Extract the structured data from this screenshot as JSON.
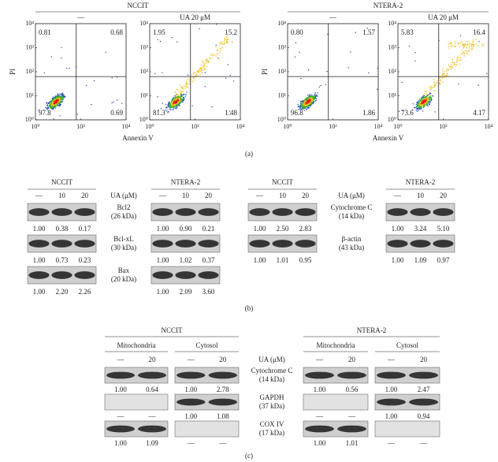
{
  "panel_a": {
    "label": "(a)",
    "y_label": "PI",
    "x_label": "Annexin V",
    "yticks": [
      "10⁰",
      "10¹",
      "10²",
      "10³",
      "10⁴"
    ],
    "xticks": [
      "10⁰",
      "10²",
      "10⁴"
    ],
    "groups": [
      {
        "title": "NCCIT",
        "conditions": [
          "—",
          "UA 20 μM"
        ],
        "plots": [
          {
            "quadrants": [
              "0.81",
              "0.68",
              "97.8",
              "0.69"
            ]
          },
          {
            "quadrants": [
              "1.95",
              "15.2",
              "81.3",
              "1.48"
            ]
          }
        ]
      },
      {
        "title": "NTERA-2",
        "conditions": [
          "—",
          "UA 20 μM"
        ],
        "plots": [
          {
            "quadrants": [
              "0.80",
              "1.57",
              "96.8",
              "1.86"
            ]
          },
          {
            "quadrants": [
              "5.83",
              "16.4",
              "73.6",
              "4.17"
            ]
          }
        ]
      }
    ]
  },
  "panel_b": {
    "label": "(b)",
    "blocks": [
      {
        "treatment": "UA (μM)",
        "groups": [
          {
            "title": "NCCIT",
            "lanes": [
              "—",
              "10",
              "20"
            ]
          },
          {
            "title": "NTERA-2",
            "lanes": [
              "—",
              "10",
              "20"
            ]
          }
        ],
        "rows": [
          {
            "protein": "Bcl2",
            "size": "(26 kDa)",
            "values": [
              [
                "1.00",
                "0.38",
                "0.17"
              ],
              [
                "1.00",
                "0.90",
                "0.21"
              ]
            ]
          },
          {
            "protein": "Bcl-xL",
            "size": "(30 kDa)",
            "values": [
              [
                "1.00",
                "0.73",
                "0.23"
              ],
              [
                "1.00",
                "1.02",
                "0.37"
              ]
            ]
          },
          {
            "protein": "Bax",
            "size": "(20 kDa)",
            "values": [
              [
                "1.00",
                "2.20",
                "2.26"
              ],
              [
                "1.00",
                "2.09",
                "3.60"
              ]
            ]
          }
        ]
      },
      {
        "treatment": "UA (μM)",
        "groups": [
          {
            "title": "NCCIT",
            "lanes": [
              "—",
              "10",
              "20"
            ]
          },
          {
            "title": "NTERA-2",
            "lanes": [
              "—",
              "10",
              "20"
            ]
          }
        ],
        "rows": [
          {
            "protein": "Cytochrome C",
            "size": "(14 kDa)",
            "values": [
              [
                "1.00",
                "2.50",
                "2.83"
              ],
              [
                "1.00",
                "3.24",
                "5.10"
              ]
            ]
          },
          {
            "protein": "β-actin",
            "size": "(43 kDa)",
            "values": [
              [
                "1.00",
                "1.01",
                "0.95"
              ],
              [
                "1.00",
                "1.09",
                "0.97"
              ]
            ]
          }
        ]
      }
    ]
  },
  "panel_c": {
    "label": "(c)",
    "treatment": "UA (μM)",
    "groups": [
      {
        "title": "NCCIT",
        "fractions": [
          {
            "name": "Mitochondria",
            "lanes": [
              "—",
              "20"
            ]
          },
          {
            "name": "Cytosol",
            "lanes": [
              "—",
              "20"
            ]
          }
        ]
      },
      {
        "title": "NTERA-2",
        "fractions": [
          {
            "name": "Mitochondria",
            "lanes": [
              "—",
              "20"
            ]
          },
          {
            "name": "Cytosol",
            "lanes": [
              "—",
              "20"
            ]
          }
        ]
      }
    ],
    "rows": [
      {
        "protein": "Cytochrome C",
        "size": "(14 kDa)",
        "values": [
          [
            [
              "1.00",
              "0.64"
            ],
            [
              "1.00",
              "2.78"
            ]
          ],
          [
            [
              "1.00",
              "0.56"
            ],
            [
              "1.00",
              "2.47"
            ]
          ]
        ]
      },
      {
        "protein": "GAPDH",
        "size": "(37 kDa)",
        "values": [
          [
            [
              "—",
              "—"
            ],
            [
              "1.00",
              "1.08"
            ]
          ],
          [
            [
              "—",
              "—"
            ],
            [
              "1.00",
              "0.94"
            ]
          ]
        ]
      },
      {
        "protein": "COX IV",
        "size": "(17 kDa)",
        "values": [
          [
            [
              "1.00",
              "1.09"
            ],
            [
              "—",
              "—"
            ]
          ],
          [
            [
              "1.00",
              "1.01"
            ],
            [
              "—",
              "—"
            ]
          ]
        ]
      }
    ]
  }
}
